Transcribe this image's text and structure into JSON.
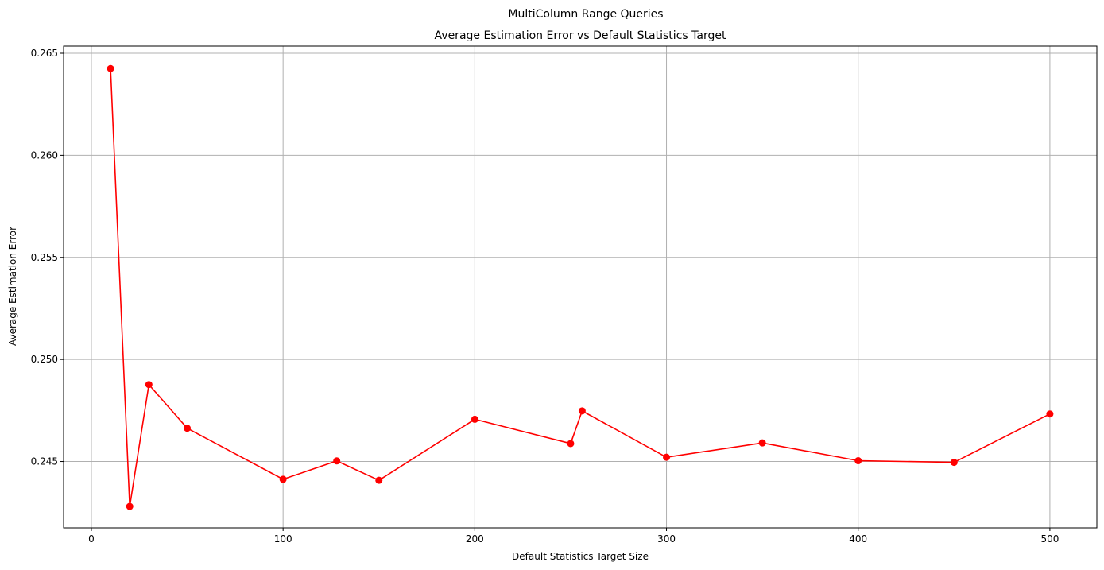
{
  "chart_data": {
    "type": "line",
    "suptitle": "MultiColumn Range Queries",
    "title": "Average Estimation Error vs Default Statistics Target",
    "xlabel": "Default Statistics Target Size",
    "ylabel": "Average Estimation Error",
    "xlim": [
      -14.5,
      524.5
    ],
    "ylim": [
      0.24175,
      0.26535
    ],
    "xticks": [
      0,
      100,
      200,
      300,
      400,
      500
    ],
    "xtick_labels": [
      "0",
      "100",
      "200",
      "300",
      "400",
      "500"
    ],
    "yticks": [
      0.245,
      0.25,
      0.255,
      0.26,
      0.265
    ],
    "ytick_labels": [
      "0.245",
      "0.250",
      "0.255",
      "0.260",
      "0.265"
    ],
    "grid": true,
    "series": [
      {
        "color": "#ff0000",
        "marker": "circle",
        "x": [
          10,
          20,
          30,
          50,
          100,
          128,
          150,
          200,
          250,
          256,
          300,
          350,
          400,
          450,
          500
        ],
        "y": [
          0.26425,
          0.2428,
          0.24877,
          0.24663,
          0.24413,
          0.24503,
          0.24408,
          0.24707,
          0.24588,
          0.24748,
          0.24521,
          0.24591,
          0.24504,
          0.24496,
          0.24733
        ]
      }
    ]
  }
}
